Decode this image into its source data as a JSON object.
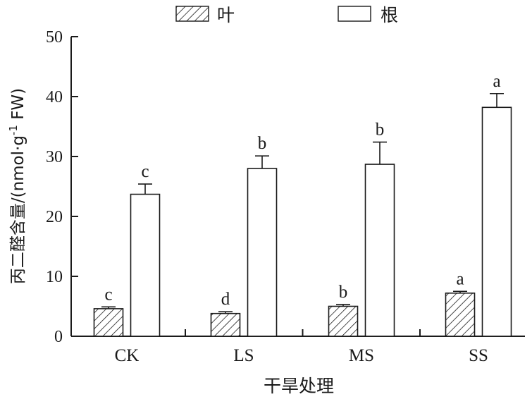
{
  "chart_data": {
    "type": "bar",
    "categories": [
      "CK",
      "LS",
      "MS",
      "SS"
    ],
    "series": [
      {
        "name": "叶",
        "fill": "hatched",
        "values": [
          4.6,
          3.8,
          5.0,
          7.2
        ],
        "errors": [
          0.3,
          0.3,
          0.3,
          0.3
        ],
        "letters": [
          "c",
          "d",
          "b",
          "a"
        ]
      },
      {
        "name": "根",
        "fill": "white",
        "values": [
          23.7,
          28.0,
          28.7,
          38.2
        ],
        "errors": [
          1.7,
          2.1,
          3.7,
          2.3
        ],
        "letters": [
          "c",
          "b",
          "b",
          "a"
        ]
      }
    ],
    "xlabel": "干旱处理",
    "ylabel": "丙二醛含量/(nmol·g",
    "ylabel_sup": "-1",
    "ylabel_tail": " FW)",
    "ylim": [
      0,
      50
    ],
    "yticks": [
      0,
      10,
      20,
      30,
      40,
      50
    ],
    "legend_position": "top",
    "grid": false
  }
}
